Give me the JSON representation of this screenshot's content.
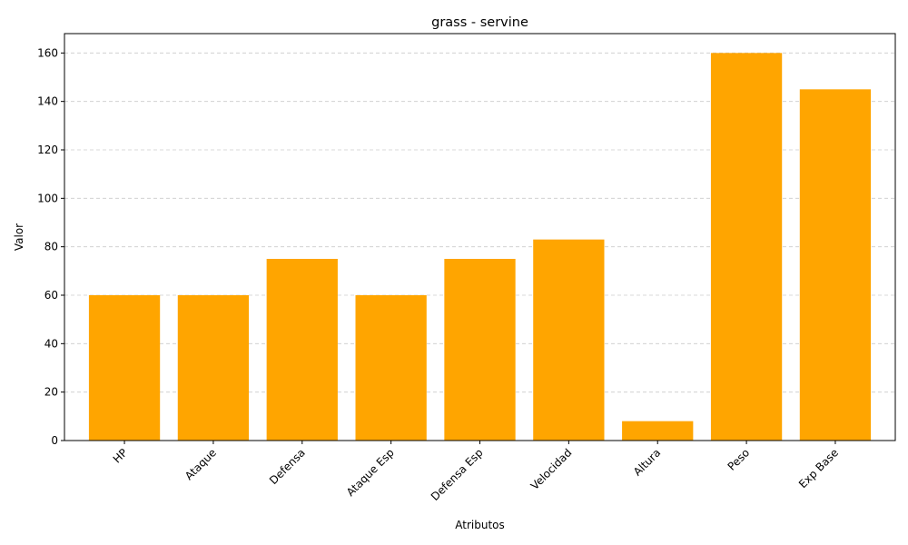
{
  "chart_data": {
    "type": "bar",
    "title": "grass - servine",
    "xlabel": "Atributos",
    "ylabel": "Valor",
    "categories": [
      "HP",
      "Ataque",
      "Defensa",
      "Ataque Esp",
      "Defensa Esp",
      "Velocidad",
      "Altura",
      "Peso",
      "Exp Base"
    ],
    "values": [
      60,
      60,
      75,
      60,
      75,
      83,
      8,
      160,
      145
    ],
    "ylim": [
      0,
      168
    ],
    "yticks": [
      0,
      20,
      40,
      60,
      80,
      100,
      120,
      140,
      160
    ],
    "bar_color": "#ffa500",
    "grid": "y-dashed",
    "xtick_rotation": 45
  }
}
